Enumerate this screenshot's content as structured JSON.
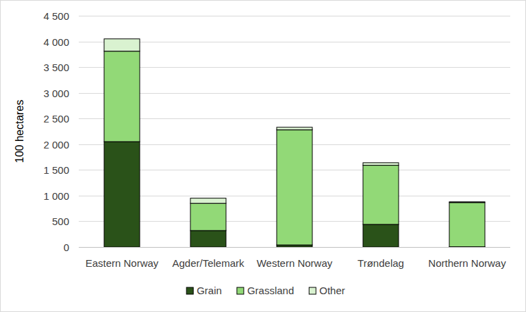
{
  "chart_data": {
    "type": "bar",
    "stacked": true,
    "grid": true,
    "legend": "bottom",
    "y_label": "100 hectares",
    "categories": [
      "Eastern Norway",
      "Agder/Telemark",
      "Western Norway",
      "Trøndelag",
      "Northern Norway"
    ],
    "series": [
      {
        "name": "Grain",
        "color": "#2a5219",
        "values": [
          2050,
          320,
          40,
          440,
          5
        ]
      },
      {
        "name": "Grassland",
        "color": "#92d977",
        "values": [
          1760,
          530,
          2240,
          1150,
          860
        ]
      },
      {
        "name": "Other",
        "color": "#d9f2d0",
        "values": [
          240,
          100,
          50,
          50,
          15
        ]
      }
    ],
    "ylim": [
      0,
      4500
    ],
    "yticks": [
      0,
      500,
      {
        "value": 1000,
        "label": "1 000"
      },
      {
        "value": 1500,
        "label": "1 500"
      },
      {
        "value": 2000,
        "label": "2 000"
      },
      {
        "value": 2500,
        "label": "2 500"
      },
      {
        "value": 3000,
        "label": "3 000"
      },
      {
        "value": 3500,
        "label": "3 500"
      },
      {
        "value": 4000,
        "label": "4 000"
      },
      {
        "value": 4500,
        "label": "4 500"
      }
    ]
  }
}
